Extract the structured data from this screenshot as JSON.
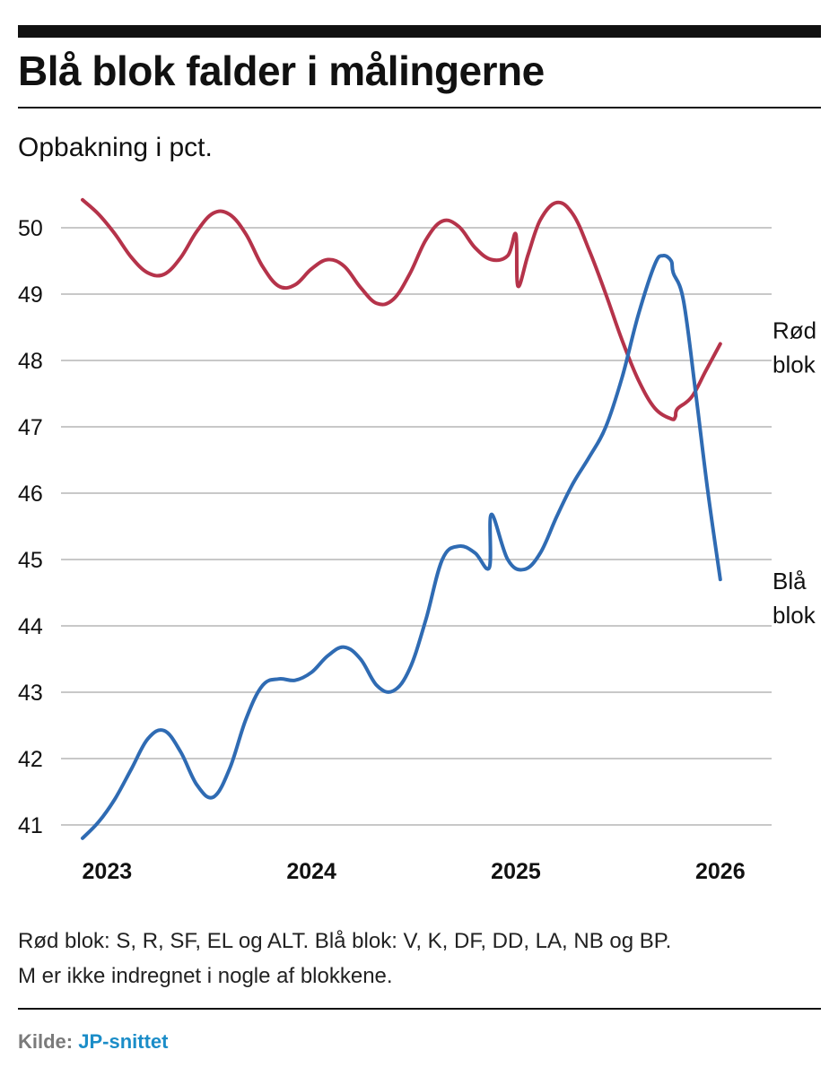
{
  "header": {
    "title": "Blå blok falder i målingerne",
    "subtitle": "Opbakning i pct."
  },
  "footer": {
    "note_line1": "Rød blok: S, R, SF, EL og ALT. Blå blok: V, K, DF, DD, LA, NB og BP.",
    "note_line2": "M er ikke indregnet i nogle af blokkene.",
    "source_label": "Kilde:",
    "source_name": "JP-snittet"
  },
  "chart_data": {
    "type": "line",
    "title": "Blå blok falder i målingerne",
    "ylabel": "Opbakning i pct.",
    "xlabel": "",
    "ylim": [
      41,
      50
    ],
    "yticks": [
      50,
      49,
      48,
      47,
      46,
      45,
      44,
      43,
      42,
      41
    ],
    "xlim": [
      2022.88,
      2026.15
    ],
    "xticks": [
      2023,
      2024,
      2025,
      2026
    ],
    "grid": true,
    "colors": {
      "red": "#b5334a",
      "blue": "#2f6bb3"
    },
    "series": [
      {
        "name": "Rød blok",
        "label_lines": [
          "Rød",
          "blok"
        ],
        "color": "#b5334a",
        "points": [
          [
            2022.88,
            50.42
          ],
          [
            2022.96,
            50.2
          ],
          [
            2023.04,
            49.9
          ],
          [
            2023.12,
            49.55
          ],
          [
            2023.2,
            49.32
          ],
          [
            2023.28,
            49.3
          ],
          [
            2023.36,
            49.55
          ],
          [
            2023.44,
            49.95
          ],
          [
            2023.52,
            50.22
          ],
          [
            2023.6,
            50.2
          ],
          [
            2023.68,
            49.9
          ],
          [
            2023.76,
            49.42
          ],
          [
            2023.84,
            49.12
          ],
          [
            2023.92,
            49.14
          ],
          [
            2024.0,
            49.38
          ],
          [
            2024.08,
            49.52
          ],
          [
            2024.16,
            49.42
          ],
          [
            2024.24,
            49.1
          ],
          [
            2024.32,
            48.86
          ],
          [
            2024.4,
            48.92
          ],
          [
            2024.48,
            49.3
          ],
          [
            2024.56,
            49.82
          ],
          [
            2024.64,
            50.1
          ],
          [
            2024.72,
            50.02
          ],
          [
            2024.8,
            49.7
          ],
          [
            2024.88,
            49.52
          ],
          [
            2024.96,
            49.58
          ],
          [
            2025.0,
            49.9
          ],
          [
            2025.01,
            49.12
          ],
          [
            2025.06,
            49.6
          ],
          [
            2025.12,
            50.12
          ],
          [
            2025.2,
            50.38
          ],
          [
            2025.28,
            50.2
          ],
          [
            2025.36,
            49.65
          ],
          [
            2025.44,
            49.0
          ],
          [
            2025.52,
            48.3
          ],
          [
            2025.6,
            47.7
          ],
          [
            2025.68,
            47.28
          ],
          [
            2025.76,
            47.12
          ],
          [
            2025.78,
            47.15
          ],
          [
            2025.79,
            47.27
          ],
          [
            2025.86,
            47.45
          ],
          [
            2025.93,
            47.85
          ],
          [
            2026.0,
            48.25
          ]
        ]
      },
      {
        "name": "Blå blok",
        "label_lines": [
          "Blå",
          "blok"
        ],
        "color": "#2f6bb3",
        "points": [
          [
            2022.88,
            40.8
          ],
          [
            2022.96,
            41.05
          ],
          [
            2023.04,
            41.4
          ],
          [
            2023.12,
            41.85
          ],
          [
            2023.2,
            42.3
          ],
          [
            2023.28,
            42.42
          ],
          [
            2023.36,
            42.1
          ],
          [
            2023.44,
            41.6
          ],
          [
            2023.52,
            41.42
          ],
          [
            2023.6,
            41.85
          ],
          [
            2023.68,
            42.6
          ],
          [
            2023.76,
            43.1
          ],
          [
            2023.84,
            43.2
          ],
          [
            2023.92,
            43.18
          ],
          [
            2024.0,
            43.3
          ],
          [
            2024.08,
            43.55
          ],
          [
            2024.16,
            43.68
          ],
          [
            2024.24,
            43.5
          ],
          [
            2024.32,
            43.1
          ],
          [
            2024.4,
            43.02
          ],
          [
            2024.48,
            43.35
          ],
          [
            2024.56,
            44.1
          ],
          [
            2024.64,
            45.0
          ],
          [
            2024.72,
            45.2
          ],
          [
            2024.8,
            45.1
          ],
          [
            2024.87,
            44.88
          ],
          [
            2024.88,
            45.68
          ],
          [
            2024.96,
            45.0
          ],
          [
            2025.04,
            44.85
          ],
          [
            2025.12,
            45.1
          ],
          [
            2025.2,
            45.65
          ],
          [
            2025.28,
            46.15
          ],
          [
            2025.36,
            46.55
          ],
          [
            2025.44,
            47.0
          ],
          [
            2025.52,
            47.75
          ],
          [
            2025.6,
            48.7
          ],
          [
            2025.68,
            49.45
          ],
          [
            2025.72,
            49.58
          ],
          [
            2025.76,
            49.5
          ],
          [
            2025.77,
            49.32
          ],
          [
            2025.82,
            48.9
          ],
          [
            2025.88,
            47.5
          ],
          [
            2025.94,
            46.0
          ],
          [
            2026.0,
            44.7
          ]
        ]
      }
    ]
  }
}
